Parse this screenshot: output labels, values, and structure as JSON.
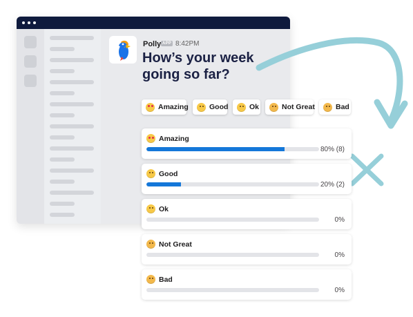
{
  "message": {
    "bot_name": "Polly",
    "badge": "APP",
    "time": "8:42PM",
    "question": "How’s your week going so far?"
  },
  "options": [
    {
      "label": "Amazing",
      "icon": "heart-eyes-emoji-icon"
    },
    {
      "label": "Good",
      "icon": "smiling-emoji-icon"
    },
    {
      "label": "Ok",
      "icon": "neutral-emoji-icon"
    },
    {
      "label": "Not Great",
      "icon": "worried-emoji-icon"
    },
    {
      "label": "Bad",
      "icon": "crying-emoji-icon"
    }
  ],
  "results": [
    {
      "label": "Amazing",
      "percent": 80,
      "display": "80% (8)"
    },
    {
      "label": "Good",
      "percent": 20,
      "display": "20% (2)"
    },
    {
      "label": "Ok",
      "percent": 0,
      "display": "0%"
    },
    {
      "label": "Not Great",
      "percent": 0,
      "display": "0%"
    },
    {
      "label": "Bad",
      "percent": 0,
      "display": "0%"
    }
  ],
  "colors": {
    "accent": "#1477d9",
    "arrow": "#96cfd9",
    "titlebar": "#0f1a3d",
    "question": "#1b2144"
  }
}
